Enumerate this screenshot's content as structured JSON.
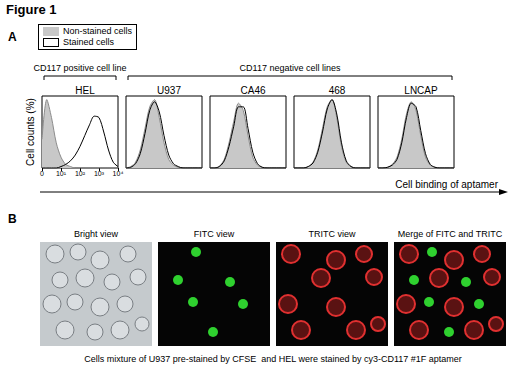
{
  "figure_title": "Figure 1",
  "panel_a": {
    "label": "A",
    "ylabel": "Cell counts (%)",
    "xlabel": "Cell binding of aptamer",
    "groups": [
      {
        "label": "CD117 positive cell line",
        "charts": [
          0
        ]
      },
      {
        "label": "CD117 negative cell lines",
        "charts": [
          1,
          2,
          3,
          4
        ]
      }
    ]
  },
  "chart_data": [
    {
      "type": "line",
      "title": "HEL",
      "x": [
        0,
        0.25,
        0.5,
        0.75,
        1,
        1.25,
        1.5,
        1.75,
        2,
        2.25,
        2.5,
        2.75,
        3,
        3.25,
        3.5,
        3.75,
        4
      ],
      "xlim": [
        0,
        4
      ],
      "xticks": [
        0,
        {
          "value": 1,
          "label": "10¹"
        },
        {
          "value": 2,
          "label": "10²"
        },
        {
          "value": 3,
          "label": "10³"
        },
        {
          "value": 4,
          "label": "10⁴"
        }
      ],
      "ylim": [
        0,
        100
      ],
      "tick_labels": "x",
      "series": [
        {
          "name": "Non-stained cells",
          "type": "area",
          "color": "#c8c8c8",
          "values": [
            40,
            95,
            70,
            35,
            15,
            5,
            2,
            0,
            0,
            0,
            0,
            0,
            0,
            0,
            0,
            0,
            0
          ]
        },
        {
          "name": "Stained cells",
          "type": "line",
          "color": "#000000",
          "values": [
            0,
            0,
            0,
            0,
            2,
            5,
            10,
            18,
            30,
            45,
            60,
            72,
            70,
            50,
            25,
            8,
            2
          ]
        }
      ]
    },
    {
      "type": "line",
      "title": "U937",
      "x": [
        0,
        0.25,
        0.5,
        0.75,
        1,
        1.25,
        1.5,
        1.75,
        2,
        2.25,
        2.5,
        2.75,
        3,
        3.25,
        3.5,
        3.75,
        4
      ],
      "xlim": [
        0,
        4
      ],
      "ylim": [
        0,
        100
      ],
      "tick_labels": false,
      "series": [
        {
          "name": "Non-stained cells",
          "type": "area",
          "color": "#c8c8c8",
          "values": [
            0,
            2,
            8,
            25,
            55,
            85,
            95,
            70,
            35,
            12,
            4,
            1,
            0,
            0,
            0,
            0,
            0
          ]
        },
        {
          "name": "Stained cells",
          "type": "line",
          "color": "#000000",
          "values": [
            0,
            1,
            6,
            20,
            48,
            80,
            92,
            78,
            45,
            18,
            6,
            2,
            0,
            0,
            0,
            0,
            0
          ]
        }
      ]
    },
    {
      "type": "line",
      "title": "CA46",
      "x": [
        0,
        0.25,
        0.5,
        0.75,
        1,
        1.25,
        1.5,
        1.75,
        2,
        2.25,
        2.5,
        2.75,
        3,
        3.25,
        3.5,
        3.75,
        4
      ],
      "xlim": [
        0,
        4
      ],
      "ylim": [
        0,
        100
      ],
      "tick_labels": false,
      "series": [
        {
          "name": "Non-stained cells",
          "type": "area",
          "color": "#c8c8c8",
          "values": [
            0,
            0,
            3,
            12,
            35,
            65,
            90,
            80,
            45,
            15,
            4,
            1,
            0,
            0,
            0,
            0,
            0
          ]
        },
        {
          "name": "Stained cells",
          "type": "line",
          "color": "#000000",
          "values": [
            0,
            0,
            2,
            10,
            30,
            58,
            85,
            85,
            55,
            22,
            6,
            1,
            0,
            0,
            0,
            0,
            0
          ]
        }
      ]
    },
    {
      "type": "line",
      "title": "468",
      "x": [
        0,
        0.25,
        0.5,
        0.75,
        1,
        1.25,
        1.5,
        1.75,
        2,
        2.25,
        2.5,
        2.75,
        3,
        3.25,
        3.5,
        3.75,
        4
      ],
      "xlim": [
        0,
        4
      ],
      "ylim": [
        0,
        100
      ],
      "tick_labels": false,
      "series": [
        {
          "name": "Non-stained cells",
          "type": "area",
          "color": "#c8c8c8",
          "values": [
            0,
            0,
            0,
            2,
            8,
            25,
            55,
            85,
            95,
            70,
            30,
            8,
            2,
            0,
            0,
            0,
            0
          ]
        },
        {
          "name": "Stained cells",
          "type": "line",
          "color": "#000000",
          "values": [
            0,
            0,
            0,
            2,
            7,
            22,
            50,
            82,
            95,
            75,
            35,
            10,
            2,
            0,
            0,
            0,
            0
          ]
        }
      ]
    },
    {
      "type": "line",
      "title": "LNCAP",
      "x": [
        0,
        0.25,
        0.5,
        0.75,
        1,
        1.25,
        1.5,
        1.75,
        2,
        2.25,
        2.5,
        2.75,
        3,
        3.25,
        3.5,
        3.75,
        4
      ],
      "xlim": [
        0,
        4
      ],
      "ylim": [
        0,
        100
      ],
      "tick_labels": false,
      "series": [
        {
          "name": "Non-stained cells",
          "type": "area",
          "color": "#c8c8c8",
          "values": [
            0,
            0,
            1,
            5,
            15,
            40,
            75,
            92,
            80,
            45,
            15,
            4,
            1,
            0,
            0,
            0,
            0
          ]
        },
        {
          "name": "Stained cells",
          "type": "line",
          "color": "#000000",
          "values": [
            0,
            0,
            1,
            4,
            12,
            35,
            70,
            90,
            85,
            52,
            20,
            5,
            1,
            0,
            0,
            0,
            0
          ]
        }
      ]
    }
  ],
  "panel_b": {
    "label": "B",
    "images": [
      "Bright view",
      "FITC view",
      "TRITC view",
      "Merge of FITC and TRITC"
    ],
    "caption": "Cells mixture of U937 pre-stained by CFSE  and HEL were stained by cy3-CD117 #1F aptamer"
  }
}
